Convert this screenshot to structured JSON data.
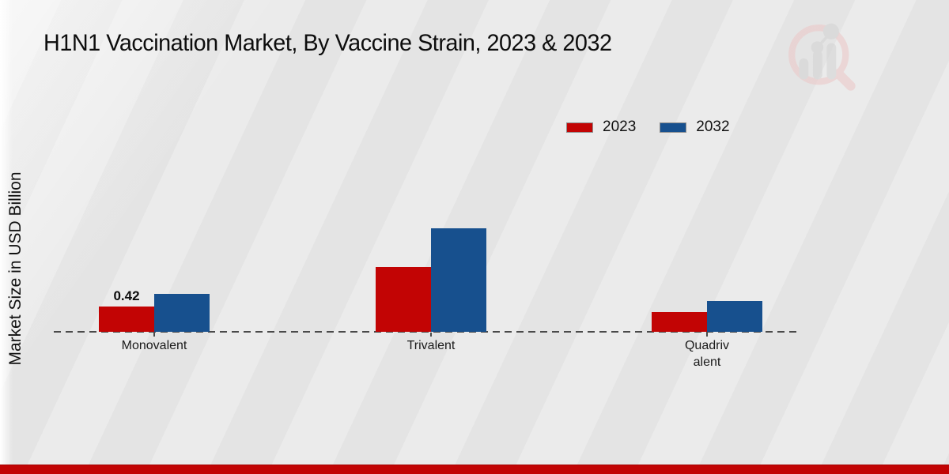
{
  "page": {
    "title": "H1N1 Vaccination Market, By Vaccine Strain, 2023 & 2032",
    "ylabel": "Market Size in USD Billion"
  },
  "legend": {
    "position": "upper right",
    "items": [
      {
        "label": "2023",
        "color": "#c20404"
      },
      {
        "label": "2032",
        "color": "#17508e"
      }
    ]
  },
  "chart_data": {
    "type": "bar",
    "title": "H1N1 Vaccination Market, By Vaccine Strain, 2023 & 2032",
    "xlabel": "",
    "ylabel": "Market Size in USD Billion",
    "categories": [
      "Monovalent",
      "Trivalent",
      "Quadrivalent"
    ],
    "tick_labels": [
      "Monovalent",
      "Trivalent",
      "Quadriv\nalent"
    ],
    "series": [
      {
        "name": "2023",
        "color": "#c20404",
        "values": [
          0.42,
          1.08,
          0.33
        ]
      },
      {
        "name": "2032",
        "color": "#17508e",
        "values": [
          0.63,
          1.72,
          0.51
        ]
      }
    ],
    "annotations": [
      {
        "text": "0.42",
        "series": "2023",
        "category": "Monovalent"
      }
    ],
    "ylim": [
      0,
      2.0
    ],
    "grid": false,
    "axis_style": "dashed-baseline-only",
    "axis_color": "#4a4a4a",
    "legend_position": "upper right"
  },
  "branding": {
    "logo_icon": "magnifier-bar-chart-watermark-icon",
    "logo_ring_color": "#ecc9c9",
    "logo_bar_color": "#d5d5d5",
    "footer_bar_color": "#c20404"
  }
}
